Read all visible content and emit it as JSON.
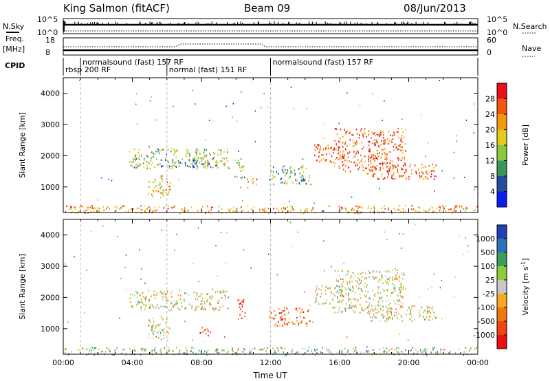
{
  "header": {
    "station": "King Salmon (fitACF)",
    "beam": "Beam 09",
    "date": "08/Jun/2013"
  },
  "param_panels": {
    "nsky_label": "N.Sky",
    "nsearch_label": "N.Search",
    "nsky_ticks": [
      "10^5",
      "10^0"
    ],
    "nsearch_ticks": [
      "10^5",
      "10^0"
    ],
    "freq_label": "Freq.",
    "freq_unit": "[MHz]",
    "freq_ticks": [
      "18",
      "8"
    ],
    "nave_label": "Nave",
    "nave_ticks": [
      "60",
      "0"
    ],
    "cpid_label": "CPID",
    "cpid_segments": [
      {
        "label": "rbsp 200 RF",
        "start_h": 0.0,
        "end_h": 1.0,
        "row": "lower"
      },
      {
        "label": "normalsound (fast) 157 RF",
        "start_h": 1.0,
        "end_h": 6.0,
        "row": "upper"
      },
      {
        "label": "normal (fast) 151 RF",
        "start_h": 6.0,
        "end_h": 12.0,
        "row": "lower"
      },
      {
        "label": "normalsound (fast) 157 RF",
        "start_h": 12.0,
        "end_h": 24.0,
        "row": "upper"
      }
    ]
  },
  "chart_data": [
    {
      "type": "heatmap",
      "panel": "power",
      "xlabel": "",
      "ylabel": "Slant Range [km]",
      "xlim": [
        0,
        24
      ],
      "ylim": [
        180,
        4500
      ],
      "y_ticks": [
        1000,
        2000,
        3000,
        4000
      ],
      "colorbar_label": "Power [dB]",
      "colorbar_ticks": [
        "28",
        "24",
        "20",
        "16",
        "12",
        "8",
        "4"
      ],
      "colorbar_colors": [
        "#e8101a",
        "#f2560e",
        "#f59a0e",
        "#e6cc1a",
        "#8cc83c",
        "#3c965a",
        "#234ea0",
        "#0a1ef0"
      ],
      "regions": [
        {
          "t": [
            3.8,
            9.6
          ],
          "r": [
            1600,
            2250
          ],
          "level": 0.55
        },
        {
          "t": [
            5.6,
            8.6
          ],
          "r": [
            1650,
            1900
          ],
          "level": 0.75
        },
        {
          "t": [
            4.9,
            6.2
          ],
          "r": [
            650,
            1400
          ],
          "level": 0.4
        },
        {
          "t": [
            10.0,
            10.5
          ],
          "r": [
            1300,
            1950
          ],
          "level": 0.55
        },
        {
          "t": [
            10.6,
            11.2
          ],
          "r": [
            1000,
            1300
          ],
          "level": 0.3
        },
        {
          "t": [
            11.9,
            14.3
          ],
          "r": [
            1100,
            1700
          ],
          "level": 0.6
        },
        {
          "t": [
            14.5,
            16.2
          ],
          "r": [
            1800,
            2400
          ],
          "level": 0.2
        },
        {
          "t": [
            15.6,
            19.8
          ],
          "r": [
            1500,
            2900
          ],
          "level": 0.2
        },
        {
          "t": [
            17.4,
            21.6
          ],
          "r": [
            1250,
            1750
          ],
          "level": 0.2
        },
        {
          "t": [
            0.0,
            24.0
          ],
          "r": [
            180,
            420
          ],
          "level": 0.3
        }
      ]
    },
    {
      "type": "heatmap",
      "panel": "velocity",
      "xlabel": "Time UT",
      "ylabel": "Slant Range [km]",
      "xlim": [
        0,
        24
      ],
      "ylim": [
        180,
        4500
      ],
      "x_ticks": [
        "00:00",
        "04:00",
        "08:00",
        "12:00",
        "16:00",
        "20:00",
        "00:00"
      ],
      "y_ticks": [
        1000,
        2000,
        3000,
        4000
      ],
      "colorbar_label": "Velocity [m s^-1]",
      "colorbar_ticks": [
        "1000",
        "500",
        "100",
        "25",
        "-25",
        "-100",
        "-500",
        "-1000"
      ],
      "colorbar_colors": [
        "#2340b4",
        "#2f70b8",
        "#3c9e5a",
        "#8ccc3c",
        "#c8c8c8",
        "#f5ab1e",
        "#f07814",
        "#ee4410",
        "#e81010"
      ],
      "regions": [
        {
          "t": [
            3.8,
            9.6
          ],
          "r": [
            1600,
            2250
          ],
          "level": 0.5
        },
        {
          "t": [
            4.9,
            6.2
          ],
          "r": [
            650,
            1400
          ],
          "level": 0.5
        },
        {
          "t": [
            10.0,
            10.5
          ],
          "r": [
            1300,
            1950
          ],
          "level": 0.92
        },
        {
          "t": [
            7.9,
            8.5
          ],
          "r": [
            800,
            1100
          ],
          "level": 0.85
        },
        {
          "t": [
            11.9,
            14.3
          ],
          "r": [
            1100,
            1700
          ],
          "level": 0.8
        },
        {
          "t": [
            14.5,
            16.2
          ],
          "r": [
            1800,
            2400
          ],
          "level": 0.5
        },
        {
          "t": [
            15.6,
            19.8
          ],
          "r": [
            1500,
            2900
          ],
          "level": 0.5
        },
        {
          "t": [
            17.4,
            21.6
          ],
          "r": [
            1250,
            1750
          ],
          "level": 0.5
        },
        {
          "t": [
            0.0,
            24.0
          ],
          "r": [
            180,
            420
          ],
          "level": 0.4
        }
      ]
    }
  ]
}
